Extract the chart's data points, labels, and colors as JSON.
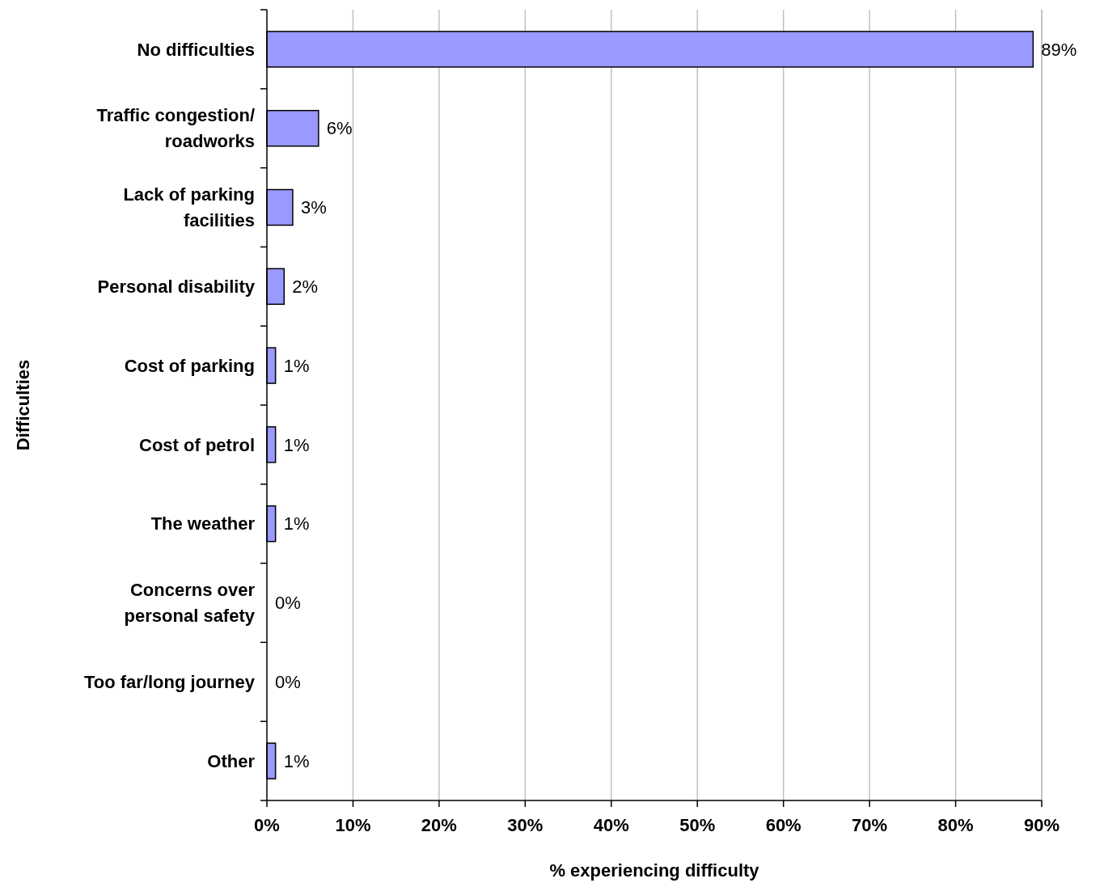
{
  "chart_data": {
    "type": "bar",
    "orientation": "horizontal",
    "xlabel": "% experiencing difficulty",
    "ylabel": "Difficulties",
    "categories": [
      "No difficulties",
      "Traffic congestion/ roadworks",
      "Lack of parking facilities",
      "Personal disability",
      "Cost of parking",
      "Cost of petrol",
      "The weather",
      "Concerns over personal safety",
      "Too far/long journey",
      "Other"
    ],
    "values": [
      89,
      6,
      3,
      2,
      1,
      1,
      1,
      0,
      0,
      1
    ],
    "value_labels": [
      "89%",
      "6%",
      "3%",
      "2%",
      "1%",
      "1%",
      "1%",
      "0%",
      "0%",
      "1%"
    ],
    "color": "#9999ff",
    "grid": "x",
    "xlim": [
      0,
      90
    ],
    "xticks": [
      {
        "value": 0,
        "label": "0%"
      },
      {
        "value": 10,
        "label": "10%"
      },
      {
        "value": 20,
        "label": "20%"
      },
      {
        "value": 30,
        "label": "30%"
      },
      {
        "value": 40,
        "label": "40%"
      },
      {
        "value": 50,
        "label": "50%"
      },
      {
        "value": 60,
        "label": "60%"
      },
      {
        "value": 70,
        "label": "70%"
      },
      {
        "value": 80,
        "label": "80%"
      },
      {
        "value": 90,
        "label": "90%"
      }
    ]
  }
}
